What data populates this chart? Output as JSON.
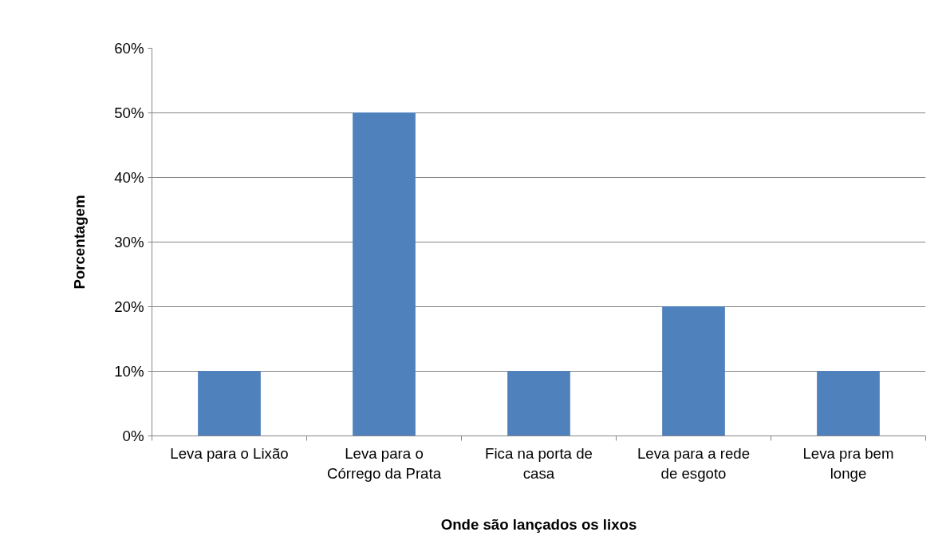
{
  "chart_data": {
    "type": "bar",
    "xlabel": "Onde são lançados os lixos",
    "ylabel": "Porcentagem",
    "categories": [
      "Leva para o Lixão",
      "Leva para o Córrego da Prata",
      "Fica na porta de casa",
      "Leva para a rede de esgoto",
      "Leva pra bem longe"
    ],
    "values": [
      10,
      50,
      10,
      20,
      10
    ],
    "color": "#4f81bd",
    "ylim": [
      0,
      60
    ],
    "yticks": [
      {
        "value": 0,
        "label": "0%"
      },
      {
        "value": 10,
        "label": "10%"
      },
      {
        "value": 20,
        "label": "20%"
      },
      {
        "value": 30,
        "label": "30%"
      },
      {
        "value": 40,
        "label": "40%"
      },
      {
        "value": 50,
        "label": "50%"
      },
      {
        "value": 60,
        "label": "60%"
      }
    ],
    "grid": "y"
  }
}
